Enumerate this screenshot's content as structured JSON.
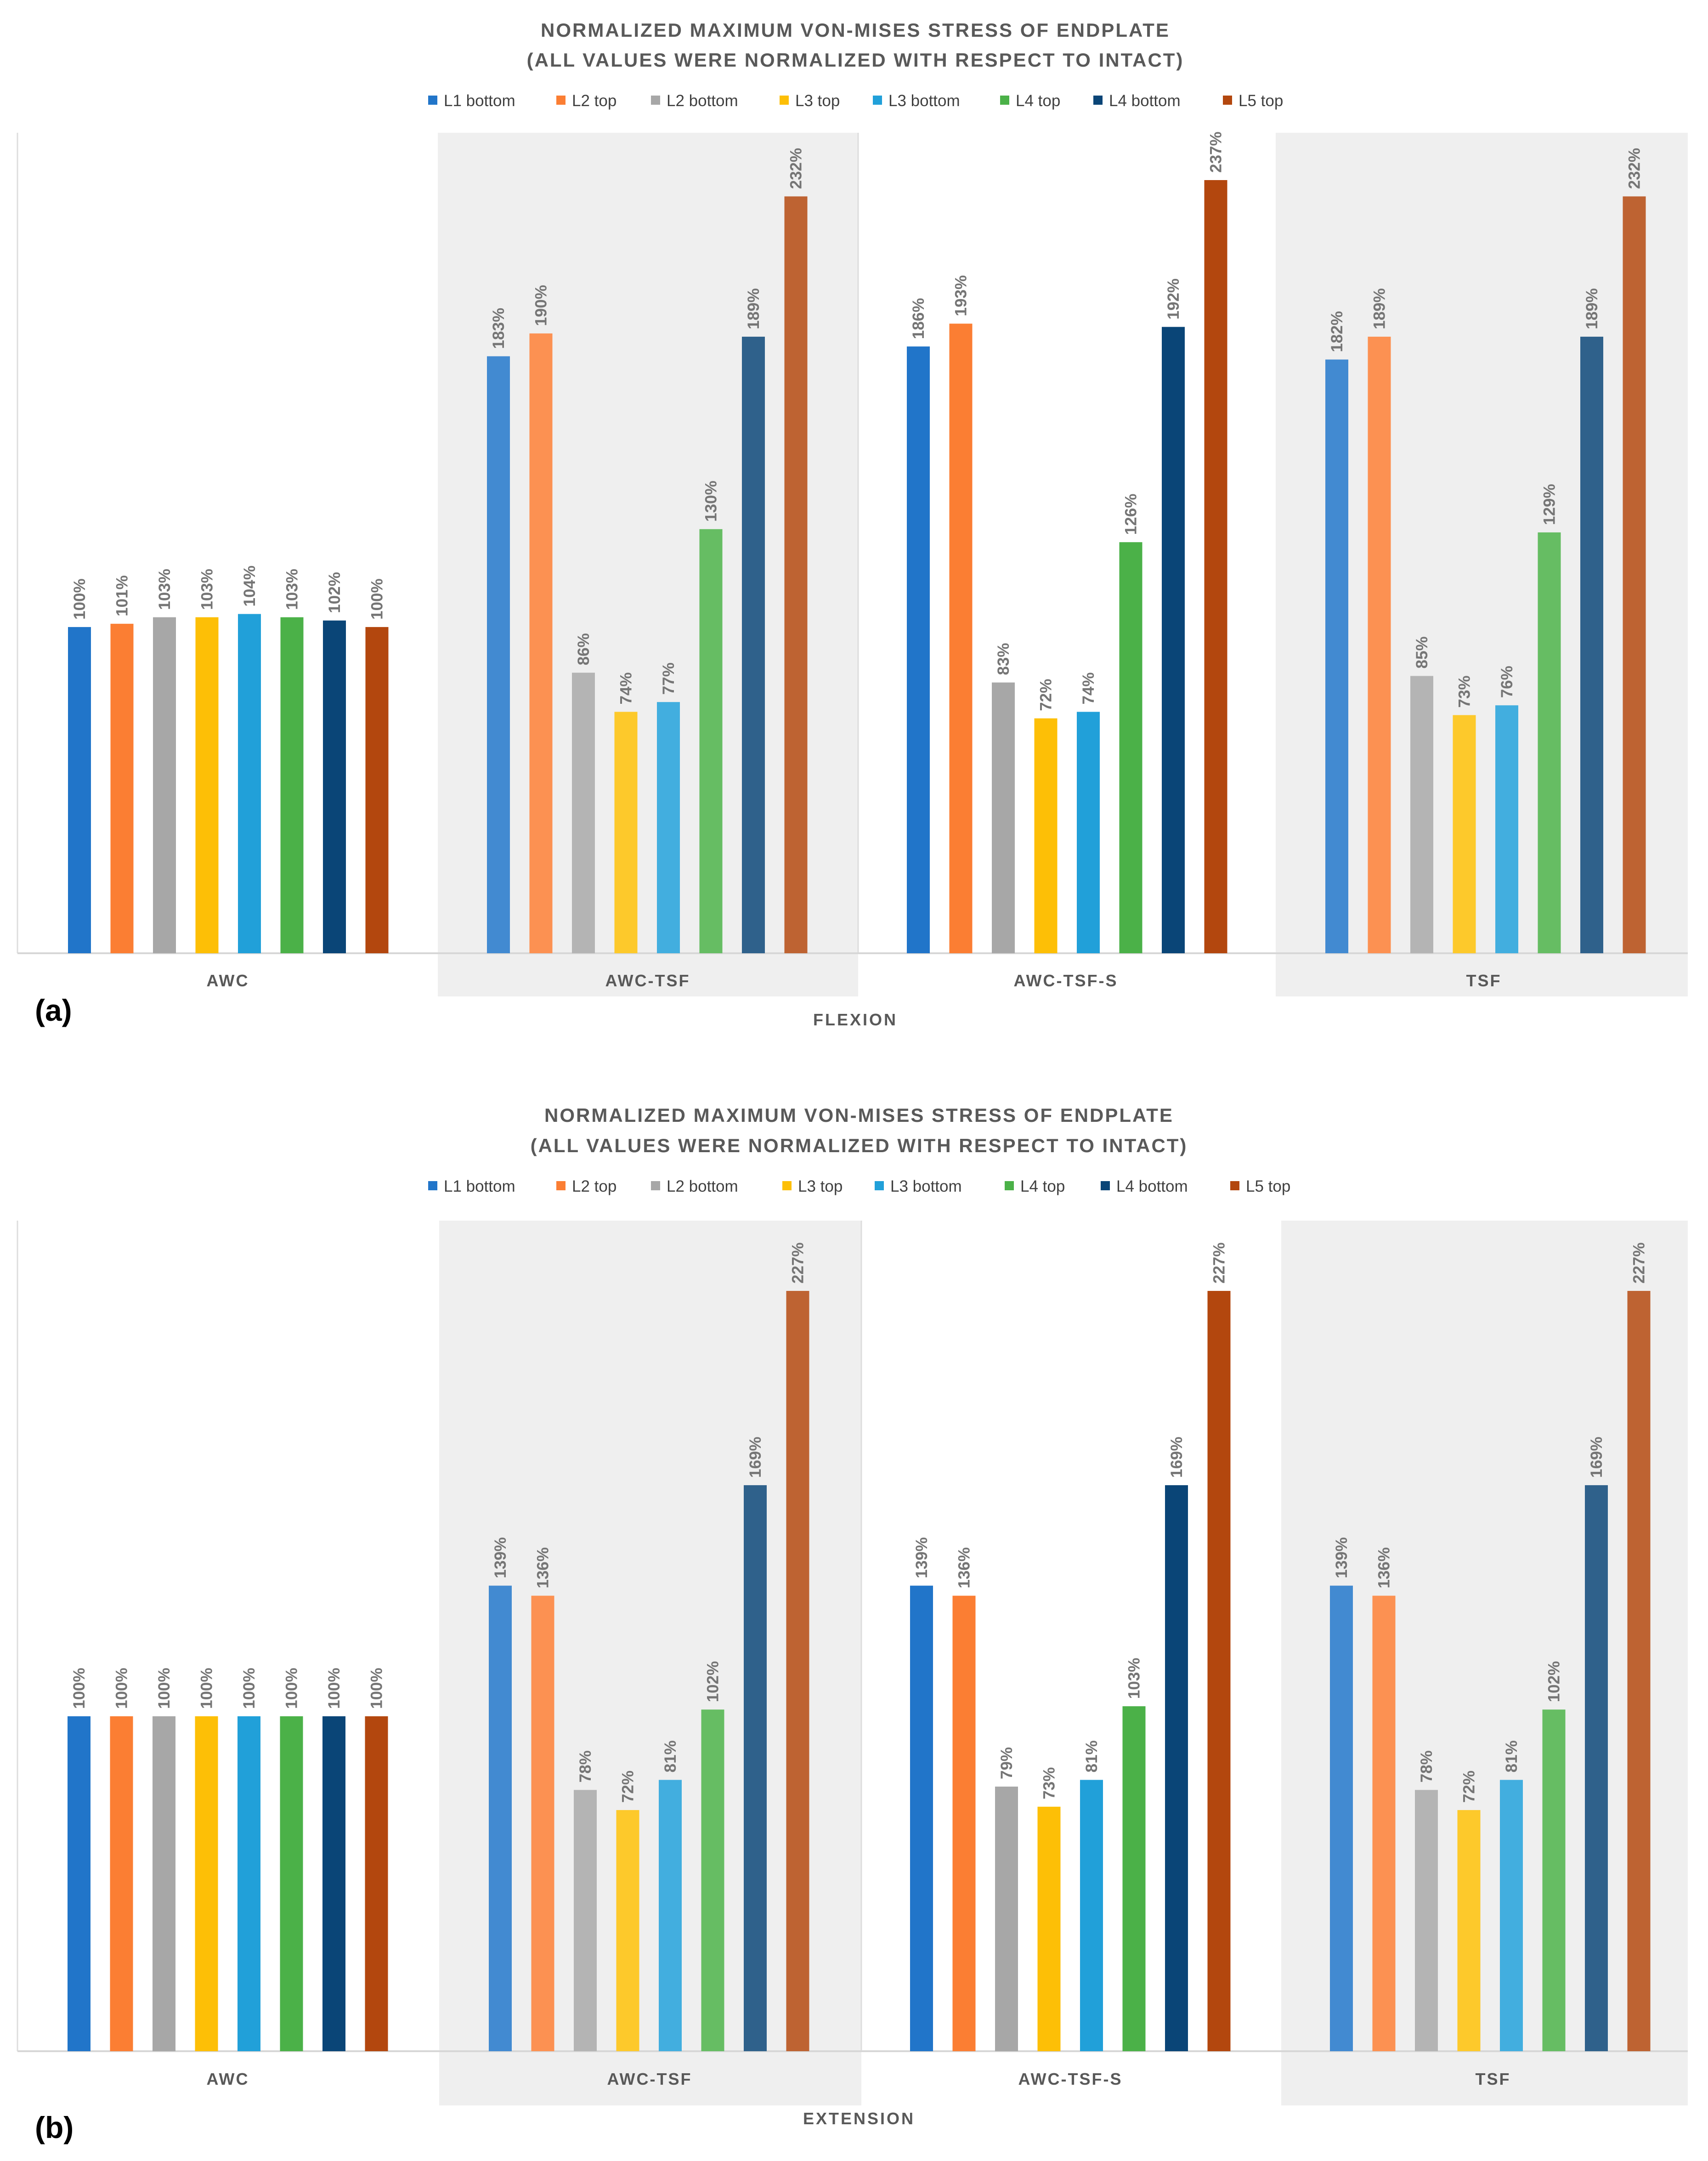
{
  "chart_data": [
    {
      "type": "bar",
      "panel_label": "(a)",
      "title_line1": "NORMALIZED MAXIMUM VON-MISES STRESS OF ENDPLATE",
      "title_line2": "(ALL VALUES WERE NORMALIZED WITH RESPECT TO INTACT)",
      "xlabel": "FLEXION",
      "ylabel": "",
      "ylim": [
        0,
        240
      ],
      "grid": false,
      "legend": "top",
      "categories": [
        "AWC",
        "AWC-TSF",
        "AWC-TSF-S",
        "TSF"
      ],
      "series": [
        {
          "name": "L1 bottom",
          "color": "#2175c9",
          "values": [
            100,
            183,
            186,
            182
          ]
        },
        {
          "name": "L2 top",
          "color": "#fb7e33",
          "values": [
            101,
            190,
            193,
            189
          ]
        },
        {
          "name": "L2 bottom",
          "color": "#a7a7a7",
          "values": [
            103,
            86,
            83,
            85
          ]
        },
        {
          "name": "L3 top",
          "color": "#fdbf06",
          "values": [
            103,
            74,
            72,
            73
          ]
        },
        {
          "name": "L3 bottom",
          "color": "#21a0d9",
          "values": [
            104,
            77,
            74,
            76
          ]
        },
        {
          "name": "L4 top",
          "color": "#4bb148",
          "values": [
            103,
            130,
            126,
            129
          ]
        },
        {
          "name": "L4 bottom",
          "color": "#0a4577",
          "values": [
            102,
            189,
            192,
            189
          ]
        },
        {
          "name": "L5 top",
          "color": "#b3470e",
          "values": [
            100,
            232,
            237,
            232
          ]
        }
      ],
      "data_labels": [
        [
          "100%",
          "183%",
          "186%",
          "182%"
        ],
        [
          "101%",
          "190%",
          "193%",
          "189%"
        ],
        [
          "103%",
          "86%",
          "83%",
          "85%"
        ],
        [
          "103%",
          "74%",
          "72%",
          "73%"
        ],
        [
          "104%",
          "77%",
          "74%",
          "76%"
        ],
        [
          "103%",
          "130%",
          "126%",
          "129%"
        ],
        [
          "102%",
          "189%",
          "192%",
          "189%"
        ],
        [
          "100%",
          "232%",
          "237%",
          "232%"
        ]
      ]
    },
    {
      "type": "bar",
      "panel_label": "(b)",
      "title_line1": "NORMALIZED MAXIMUM VON-MISES STRESS OF ENDPLATE",
      "title_line2": "(ALL VALUES WERE NORMALIZED WITH RESPECT TO INTACT)",
      "xlabel": "EXTENSION",
      "ylabel": "",
      "ylim": [
        0,
        240
      ],
      "grid": false,
      "legend": "top",
      "categories": [
        "AWC",
        "AWC-TSF",
        "AWC-TSF-S",
        "TSF"
      ],
      "series": [
        {
          "name": "L1 bottom",
          "color": "#2175c9",
          "values": [
            100,
            139,
            139,
            139
          ]
        },
        {
          "name": "L2 top",
          "color": "#fb7e33",
          "values": [
            100,
            136,
            136,
            136
          ]
        },
        {
          "name": "L2 bottom",
          "color": "#a7a7a7",
          "values": [
            100,
            78,
            79,
            78
          ]
        },
        {
          "name": "L3 top",
          "color": "#fdbf06",
          "values": [
            100,
            72,
            73,
            72
          ]
        },
        {
          "name": "L3 bottom",
          "color": "#21a0d9",
          "values": [
            100,
            81,
            81,
            81
          ]
        },
        {
          "name": "L4 top",
          "color": "#4bb148",
          "values": [
            100,
            102,
            103,
            102
          ]
        },
        {
          "name": "L4 bottom",
          "color": "#0a4577",
          "values": [
            100,
            169,
            169,
            169
          ]
        },
        {
          "name": "L5 top",
          "color": "#b3470e",
          "values": [
            100,
            227,
            227,
            227
          ]
        }
      ],
      "data_labels": [
        [
          "100%",
          "139%",
          "139%",
          "139%"
        ],
        [
          "100%",
          "136%",
          "136%",
          "136%"
        ],
        [
          "100%",
          "78%",
          "79%",
          "78%"
        ],
        [
          "100%",
          "72%",
          "73%",
          "72%"
        ],
        [
          "100%",
          "81%",
          "81%",
          "81%"
        ],
        [
          "100%",
          "102%",
          "103%",
          "102%"
        ],
        [
          "100%",
          "169%",
          "169%",
          "169%"
        ],
        [
          "100%",
          "227%",
          "227%",
          "227%"
        ]
      ]
    }
  ]
}
